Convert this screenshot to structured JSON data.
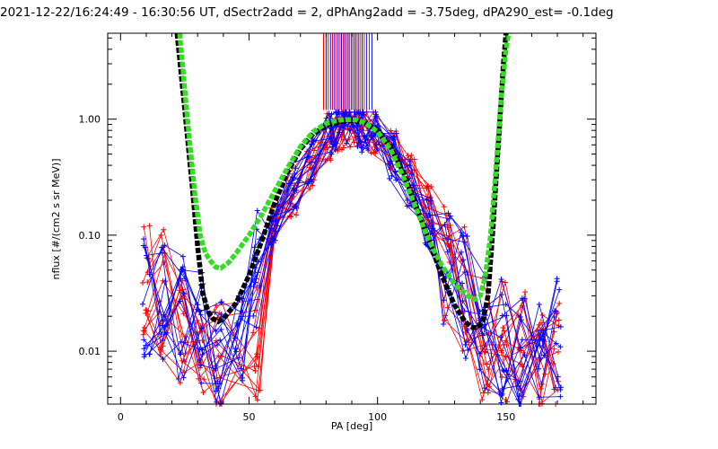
{
  "chart_data": {
    "type": "scatter",
    "title": "2021-12-22/16:24:49 - 16:30:56 UT, dSectr2add = 2, dPhAng2add = -3.75deg, dPA290_est=  -0.1deg",
    "xlabel": "PA [deg]",
    "ylabel": "nflux [#/(cm2 s sr MeV)]",
    "xlim": [
      -5,
      185
    ],
    "ylim": [
      0.0035,
      5.5
    ],
    "yscale": "log",
    "x_ticks": [
      0,
      50,
      100,
      150
    ],
    "x_tick_labels": [
      "0",
      "50",
      "100",
      "150"
    ],
    "y_ticks": [
      0.01,
      0.1,
      1.0
    ],
    "y_tick_labels": [
      "0.01",
      "0.10",
      "1.00"
    ],
    "grid": false,
    "legend": "none",
    "fit_curves": [
      {
        "color": "#000000",
        "x": [
          22,
          25,
          28,
          30,
          32,
          34,
          36,
          38,
          40,
          45,
          50,
          55,
          60,
          65,
          70,
          75,
          80,
          85,
          88,
          90,
          92,
          95,
          100,
          105,
          110,
          115,
          120,
          125,
          130,
          134,
          137,
          139,
          141,
          143,
          145,
          147,
          149,
          150
        ],
        "y": [
          5.5,
          1.2,
          0.25,
          0.08,
          0.032,
          0.022,
          0.019,
          0.018,
          0.019,
          0.026,
          0.045,
          0.09,
          0.19,
          0.35,
          0.55,
          0.75,
          0.88,
          0.95,
          0.97,
          0.97,
          0.96,
          0.93,
          0.8,
          0.58,
          0.35,
          0.18,
          0.09,
          0.045,
          0.025,
          0.018,
          0.016,
          0.016,
          0.018,
          0.03,
          0.12,
          0.6,
          3.0,
          5.5
        ]
      },
      {
        "color": "#33dd22",
        "x": [
          23,
          25,
          27,
          29,
          31,
          33,
          35,
          37,
          39,
          42,
          45,
          50,
          55,
          60,
          65,
          70,
          75,
          80,
          85,
          88,
          90,
          92,
          95,
          100,
          105,
          110,
          115,
          120,
          125,
          130,
          135,
          138,
          140,
          142,
          144,
          146,
          148,
          150,
          151
        ],
        "y": [
          5.5,
          1.8,
          0.6,
          0.22,
          0.1,
          0.07,
          0.06,
          0.053,
          0.052,
          0.058,
          0.07,
          0.1,
          0.15,
          0.24,
          0.38,
          0.58,
          0.78,
          0.92,
          0.98,
          0.99,
          0.99,
          0.98,
          0.93,
          0.78,
          0.55,
          0.32,
          0.17,
          0.09,
          0.055,
          0.038,
          0.03,
          0.028,
          0.03,
          0.045,
          0.1,
          0.35,
          1.4,
          4.0,
          5.5
        ]
      }
    ],
    "measurement_series": [
      {
        "color": "#ff0000",
        "x": [
          10,
          16,
          24,
          31,
          38,
          53,
          60,
          67,
          74,
          81,
          85,
          88,
          92,
          95,
          99,
          106,
          113,
          120,
          127,
          134,
          142,
          149,
          156,
          164,
          170
        ],
        "y": [
          0.045,
          0.032,
          0.012,
          0.01,
          0.009,
          0.012,
          0.12,
          0.22,
          0.4,
          0.7,
          0.88,
          0.92,
          0.93,
          0.9,
          0.82,
          0.56,
          0.3,
          0.16,
          0.06,
          0.035,
          0.013,
          0.012,
          0.01,
          0.008,
          0.009
        ],
        "profiles": 14
      },
      {
        "color": "#0000ff",
        "x": [
          10,
          17,
          24,
          31,
          38,
          46,
          53,
          60,
          67,
          74,
          81,
          84,
          88,
          92,
          95,
          99,
          106,
          113,
          120,
          127,
          134,
          141,
          149,
          156,
          164,
          170
        ],
        "y": [
          0.03,
          0.028,
          0.02,
          0.014,
          0.011,
          0.018,
          0.05,
          0.13,
          0.25,
          0.45,
          0.75,
          0.88,
          0.92,
          0.9,
          0.86,
          0.75,
          0.48,
          0.26,
          0.13,
          0.06,
          0.03,
          0.017,
          0.012,
          0.009,
          0.012,
          0.013
        ],
        "profiles": 14
      }
    ],
    "marker_lines": [
      {
        "x": 79.0,
        "color": "#ff0000"
      },
      {
        "x": 80.0,
        "color": "#0000ff"
      },
      {
        "x": 80.8,
        "color": "#ff0000"
      },
      {
        "x": 81.7,
        "color": "#0000ff"
      },
      {
        "x": 82.5,
        "color": "#ff0000"
      },
      {
        "x": 83.3,
        "color": "#0000ff"
      },
      {
        "x": 84.0,
        "color": "#ff0000"
      },
      {
        "x": 84.7,
        "color": "#0000ff"
      },
      {
        "x": 85.4,
        "color": "#ff0000"
      },
      {
        "x": 86.0,
        "color": "#0000ff"
      },
      {
        "x": 86.7,
        "color": "#ff0000"
      },
      {
        "x": 87.3,
        "color": "#0000ff"
      },
      {
        "x": 88.0,
        "color": "#ff0000"
      },
      {
        "x": 88.6,
        "color": "#0000ff"
      },
      {
        "x": 89.2,
        "color": "#ff0000"
      },
      {
        "x": 89.9,
        "color": "#0000ff"
      },
      {
        "x": 90.5,
        "color": "#ff0000"
      },
      {
        "x": 91.2,
        "color": "#0000ff"
      },
      {
        "x": 91.8,
        "color": "#ff0000"
      },
      {
        "x": 92.5,
        "color": "#0000ff"
      },
      {
        "x": 93.2,
        "color": "#ff0000"
      },
      {
        "x": 94.0,
        "color": "#0000ff"
      },
      {
        "x": 94.8,
        "color": "#ff0000"
      },
      {
        "x": 95.7,
        "color": "#0000ff"
      },
      {
        "x": 96.8,
        "color": "#ff0000"
      },
      {
        "x": 97.8,
        "color": "#0000ff"
      }
    ],
    "marker_line_range": [
      1.2,
      5.5
    ]
  }
}
